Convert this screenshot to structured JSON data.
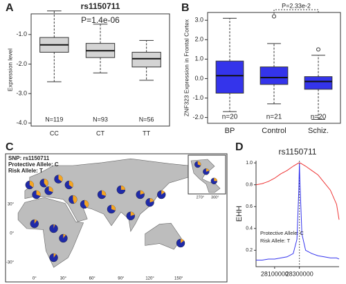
{
  "chart_data": [
    {
      "type": "box",
      "panel": "A",
      "title": "rs1150711",
      "annotation": "P=1.4e-06",
      "ylabel": "Expression level",
      "categories": [
        "CC",
        "CT",
        "TT"
      ],
      "n_labels": [
        "N=119",
        "N=93",
        "N=56"
      ],
      "colors": [
        "#5fae5f",
        "#e09a2a",
        "#8b3aa8"
      ],
      "box_color": "#cccccc",
      "boxes": [
        {
          "whislo": -2.6,
          "q1": -1.6,
          "med": -1.35,
          "q3": -1.1,
          "whishi": -0.2
        },
        {
          "whislo": -2.3,
          "q1": -1.78,
          "med": -1.55,
          "q3": -1.3,
          "whishi": -0.65
        },
        {
          "whislo": -2.55,
          "q1": -2.1,
          "med": -1.82,
          "q3": -1.6,
          "whishi": -1.2
        }
      ],
      "outliers": [
        [],
        [],
        []
      ],
      "ylim": [
        -4.1,
        -0.3
      ],
      "yticks": [
        {
          "value": -4,
          "label": "-4.0"
        },
        {
          "value": -3,
          "label": "-3.0"
        },
        {
          "value": -2,
          "label": "-2.0"
        },
        {
          "value": -1,
          "label": "-1.0"
        }
      ]
    },
    {
      "type": "box",
      "panel": "B",
      "annotation": "P=2.33e-2",
      "ylabel": "ZNF323 Expression in Frontal Cortex",
      "categories": [
        "BP",
        "Control",
        "Schiz."
      ],
      "n_labels": [
        "n=20",
        "n=21",
        "n=20"
      ],
      "colors": [
        "#000000",
        "#000000",
        "#000000"
      ],
      "box_color": "#1010e8",
      "boxes": [
        {
          "whislo": -1.7,
          "q1": -0.75,
          "med": 0.15,
          "q3": 0.9,
          "whishi": 3.1
        },
        {
          "whislo": -1.3,
          "q1": -0.3,
          "med": 0.05,
          "q3": 0.6,
          "whishi": 1.8
        },
        {
          "whislo": -2.1,
          "q1": -0.55,
          "med": -0.15,
          "q3": 0.1,
          "whishi": 1.2
        }
      ],
      "outliers": [
        [],
        [
          3.2
        ],
        [
          1.5
        ]
      ],
      "ylim": [
        -2.3,
        3.4
      ],
      "yticks": [
        {
          "value": -2,
          "label": "-2.0"
        },
        {
          "value": -1,
          "label": "-1.0"
        },
        {
          "value": 0,
          "label": "0.0"
        },
        {
          "value": 1,
          "label": "1.0"
        },
        {
          "value": 2,
          "label": "2.0"
        },
        {
          "value": 3,
          "label": "3.0"
        }
      ]
    },
    {
      "type": "line",
      "panel": "D",
      "title": "rs1150711",
      "ylabel": "EHH",
      "x": [
        27950000,
        28000000,
        28050000,
        28100000,
        28150000,
        28200000,
        28250000,
        28280000,
        28295000,
        28300000,
        28305000,
        28320000,
        28350000,
        28400000,
        28450000,
        28500000,
        28550000,
        28600000,
        28620000
      ],
      "series": [
        {
          "name": "Protective Allele: C",
          "color": "#3333ee",
          "values": [
            0.11,
            0.11,
            0.12,
            0.12,
            0.13,
            0.14,
            0.17,
            0.3,
            0.75,
            1.0,
            0.8,
            0.35,
            0.2,
            0.17,
            0.15,
            0.14,
            0.13,
            0.13,
            0.12
          ]
        },
        {
          "name": "Risk Allele: T",
          "color": "#ee3333",
          "values": [
            0.8,
            0.81,
            0.83,
            0.86,
            0.9,
            0.93,
            0.97,
            0.99,
            1.0,
            1.0,
            1.0,
            0.99,
            0.97,
            0.93,
            0.89,
            0.82,
            0.75,
            0.62,
            0.48
          ]
        }
      ],
      "xlim": [
        27950000,
        28620000
      ],
      "xticks": [
        28100000,
        28300000
      ],
      "ylim": [
        0.05,
        1.02
      ],
      "yticks": [
        0.2,
        0.4,
        0.6,
        0.8,
        {
          "value": 1,
          "label": "1.0"
        }
      ]
    }
  ],
  "map": {
    "panel": "C",
    "title": "SNP: rs1150711",
    "protective": "Protective Allele: C",
    "risk": "Risk Allele: T",
    "protective_color": "#1f2aa8",
    "risk_color": "#f5a623",
    "lat_ticks": [
      {
        "value": 30,
        "label": "30°"
      },
      {
        "value": 0,
        "label": "0°"
      },
      {
        "value": -30,
        "label": "-30°"
      }
    ],
    "lon_ticks": [
      {
        "value": 0,
        "label": "0°"
      },
      {
        "value": 30,
        "label": "30°"
      },
      {
        "value": 60,
        "label": "60°"
      },
      {
        "value": 90,
        "label": "90°"
      },
      {
        "value": 120,
        "label": "120°"
      },
      {
        "value": 150,
        "label": "150°"
      }
    ],
    "inset_lon_ticks": [
      {
        "value": 270,
        "label": "270°"
      },
      {
        "value": 300,
        "label": "300°"
      }
    ],
    "pies": [
      {
        "lon": -5,
        "lat": 50,
        "risk": 0.35
      },
      {
        "lon": 10,
        "lat": 52,
        "risk": 0.4
      },
      {
        "lon": 25,
        "lat": 56,
        "risk": 0.35
      },
      {
        "lon": 15,
        "lat": 44,
        "risk": 0.3
      },
      {
        "lon": 36,
        "lat": 50,
        "risk": 0.35
      },
      {
        "lon": 2,
        "lat": 40,
        "risk": 0.3
      },
      {
        "lon": 40,
        "lat": 35,
        "risk": 0.45
      },
      {
        "lon": 52,
        "lat": 30,
        "risk": 0.4
      },
      {
        "lon": 70,
        "lat": 40,
        "risk": 0.3
      },
      {
        "lon": 90,
        "lat": 45,
        "risk": 0.25
      },
      {
        "lon": 110,
        "lat": 40,
        "risk": 0.2
      },
      {
        "lon": 120,
        "lat": 32,
        "risk": 0.2
      },
      {
        "lon": 132,
        "lat": 40,
        "risk": 0.15
      },
      {
        "lon": 80,
        "lat": 25,
        "risk": 0.3
      },
      {
        "lon": 100,
        "lat": 18,
        "risk": 0.2
      },
      {
        "lon": 0,
        "lat": 10,
        "risk": 0.1
      },
      {
        "lon": 20,
        "lat": 5,
        "risk": 0.05
      },
      {
        "lon": 30,
        "lat": -5,
        "risk": 0.1
      },
      {
        "lon": 20,
        "lat": -25,
        "risk": 0.1
      },
      {
        "lon": 152,
        "lat": -10,
        "risk": 0.15
      }
    ],
    "inset_pies": [
      {
        "lon": 265,
        "lat": 38,
        "risk": 0.3
      },
      {
        "lon": 282,
        "lat": 18,
        "risk": 0.2
      },
      {
        "lon": 298,
        "lat": -8,
        "risk": 0.25
      }
    ]
  }
}
